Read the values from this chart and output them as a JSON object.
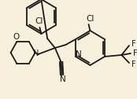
{
  "background_color": "#f5efdc",
  "line_color": "#1a1a1a",
  "lw": 1.3,
  "figsize": [
    1.74,
    1.26
  ],
  "dpi": 100,
  "xlim": [
    0,
    174
  ],
  "ylim": [
    0,
    126
  ]
}
